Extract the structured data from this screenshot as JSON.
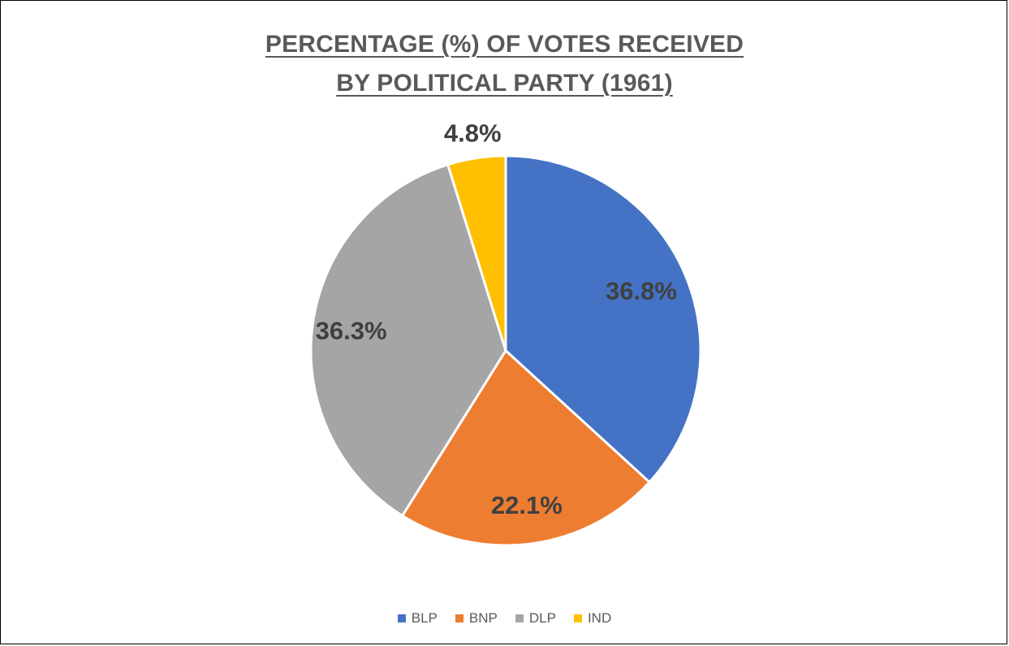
{
  "chart_data": {
    "type": "pie",
    "title_lines": [
      "PERCENTAGE (%) OF VOTES RECEIVED",
      "BY POLITICAL PARTY (1961)"
    ],
    "categories": [
      "BLP",
      "BNP",
      "DLP",
      "IND"
    ],
    "values": [
      36.8,
      22.1,
      36.3,
      4.8
    ],
    "data_labels": [
      "36.8%",
      "22.1%",
      "36.3%",
      "4.8%"
    ],
    "colors": [
      "#4472C4",
      "#ED7D31",
      "#A5A5A5",
      "#FFC000"
    ],
    "legend_position": "bottom",
    "start_angle": "12 o'clock, clockwise"
  }
}
